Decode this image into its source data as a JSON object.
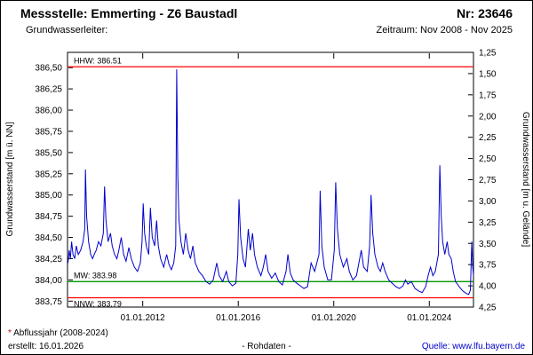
{
  "header": {
    "title": "Messstelle: Emmerting - Z6 Baustadl",
    "number": "Nr: 23646",
    "aquifer_label": "Grundwasserleiter:",
    "period": "Zeitraum: Nov 2008 - Nov 2025"
  },
  "footer": {
    "footnote_star": "*",
    "footnote_text": " Abflussjahr (2008-2024)",
    "created": "erstellt: 16.01.2026",
    "center": "- Rohdaten -",
    "source": "Quelle: www.lfu.bayern.de"
  },
  "chart_data": {
    "type": "line",
    "title": "",
    "ylabel_left": "Grundwasserstand [m ü. NN]",
    "ylabel_right": "Grundwasserstand [m u. Gelände]",
    "xlabel": "",
    "grid": false,
    "x_range": [
      2008.85,
      2025.85
    ],
    "ylim_left": [
      383.68,
      386.68
    ],
    "ylim_right": [
      4.25,
      1.25
    ],
    "ground_elevation_m": 387.93,
    "x_ticks": [
      {
        "value": 2012.0,
        "label": "01.01.2012"
      },
      {
        "value": 2016.0,
        "label": "01.01.2016"
      },
      {
        "value": 2020.0,
        "label": "01.01.2020"
      },
      {
        "value": 2024.0,
        "label": "01.01.2024"
      }
    ],
    "y_ticks_left": [
      {
        "value": 386.5,
        "label": "386,50"
      },
      {
        "value": 386.25,
        "label": "386,25"
      },
      {
        "value": 386.0,
        "label": "386,00"
      },
      {
        "value": 385.75,
        "label": "385,75"
      },
      {
        "value": 385.5,
        "label": "385,50"
      },
      {
        "value": 385.25,
        "label": "385,25"
      },
      {
        "value": 385.0,
        "label": "385,00"
      },
      {
        "value": 384.75,
        "label": "384,75"
      },
      {
        "value": 384.5,
        "label": "384,50"
      },
      {
        "value": 384.25,
        "label": "384,25"
      },
      {
        "value": 384.0,
        "label": "384,00"
      },
      {
        "value": 383.75,
        "label": "383,75"
      }
    ],
    "y_ticks_right": [
      {
        "value": 1.25,
        "label": "1,25"
      },
      {
        "value": 1.5,
        "label": "1,50"
      },
      {
        "value": 1.75,
        "label": "1,75"
      },
      {
        "value": 2.0,
        "label": "2,00"
      },
      {
        "value": 2.25,
        "label": "2,25"
      },
      {
        "value": 2.5,
        "label": "2,50"
      },
      {
        "value": 2.75,
        "label": "2,75"
      },
      {
        "value": 3.0,
        "label": "3,00"
      },
      {
        "value": 3.25,
        "label": "3,25"
      },
      {
        "value": 3.5,
        "label": "3,50"
      },
      {
        "value": 3.75,
        "label": "3,75"
      },
      {
        "value": 4.0,
        "label": "4,00"
      },
      {
        "value": 4.25,
        "label": "4,25"
      }
    ],
    "reference_lines": [
      {
        "name": "HHW",
        "value": 386.51,
        "label": "HHW: 386.51",
        "color": "#ff0000",
        "label_position": "above"
      },
      {
        "name": "MW",
        "value": 383.98,
        "label": "MW: 383.98",
        "color": "#009900",
        "label_position": "above"
      },
      {
        "name": "NNW",
        "value": 383.79,
        "label": "NNW: 383.79",
        "color": "#ff0000",
        "label_position": "below"
      }
    ],
    "series": [
      {
        "name": "Grundwasserstand Rohdaten",
        "color": "#0000cc",
        "points": [
          [
            2008.87,
            384.2
          ],
          [
            2008.92,
            384.35
          ],
          [
            2008.97,
            384.25
          ],
          [
            2009.02,
            384.45
          ],
          [
            2009.08,
            384.3
          ],
          [
            2009.15,
            384.25
          ],
          [
            2009.22,
            384.4
          ],
          [
            2009.3,
            384.3
          ],
          [
            2009.4,
            384.35
          ],
          [
            2009.5,
            384.45
          ],
          [
            2009.57,
            384.6
          ],
          [
            2009.6,
            385.3
          ],
          [
            2009.65,
            384.75
          ],
          [
            2009.73,
            384.45
          ],
          [
            2009.82,
            384.3
          ],
          [
            2009.9,
            384.25
          ],
          [
            2009.97,
            384.3
          ],
          [
            2010.05,
            384.35
          ],
          [
            2010.15,
            384.45
          ],
          [
            2010.25,
            384.4
          ],
          [
            2010.35,
            384.55
          ],
          [
            2010.4,
            385.1
          ],
          [
            2010.46,
            384.7
          ],
          [
            2010.55,
            384.45
          ],
          [
            2010.65,
            384.55
          ],
          [
            2010.72,
            384.4
          ],
          [
            2010.82,
            384.3
          ],
          [
            2010.92,
            384.25
          ],
          [
            2011.0,
            384.35
          ],
          [
            2011.1,
            384.5
          ],
          [
            2011.2,
            384.3
          ],
          [
            2011.3,
            384.22
          ],
          [
            2011.42,
            384.38
          ],
          [
            2011.52,
            384.25
          ],
          [
            2011.65,
            384.15
          ],
          [
            2011.78,
            384.1
          ],
          [
            2011.9,
            384.2
          ],
          [
            2011.97,
            384.45
          ],
          [
            2012.02,
            384.9
          ],
          [
            2012.08,
            384.55
          ],
          [
            2012.15,
            384.4
          ],
          [
            2012.25,
            384.3
          ],
          [
            2012.32,
            384.85
          ],
          [
            2012.4,
            384.5
          ],
          [
            2012.5,
            384.4
          ],
          [
            2012.58,
            384.7
          ],
          [
            2012.65,
            384.4
          ],
          [
            2012.75,
            384.25
          ],
          [
            2012.88,
            384.15
          ],
          [
            2013.0,
            384.3
          ],
          [
            2013.1,
            384.18
          ],
          [
            2013.2,
            384.12
          ],
          [
            2013.3,
            384.2
          ],
          [
            2013.38,
            384.4
          ],
          [
            2013.42,
            386.48
          ],
          [
            2013.47,
            385.2
          ],
          [
            2013.52,
            384.7
          ],
          [
            2013.6,
            384.45
          ],
          [
            2013.7,
            384.3
          ],
          [
            2013.8,
            384.55
          ],
          [
            2013.9,
            384.35
          ],
          [
            2014.0,
            384.25
          ],
          [
            2014.1,
            384.4
          ],
          [
            2014.2,
            384.2
          ],
          [
            2014.35,
            384.1
          ],
          [
            2014.5,
            384.05
          ],
          [
            2014.65,
            383.98
          ],
          [
            2014.8,
            383.95
          ],
          [
            2014.95,
            384.0
          ],
          [
            2015.1,
            384.2
          ],
          [
            2015.2,
            384.05
          ],
          [
            2015.35,
            383.98
          ],
          [
            2015.5,
            384.1
          ],
          [
            2015.6,
            383.98
          ],
          [
            2015.75,
            383.93
          ],
          [
            2015.9,
            383.96
          ],
          [
            2015.98,
            384.3
          ],
          [
            2016.03,
            384.95
          ],
          [
            2016.1,
            384.5
          ],
          [
            2016.2,
            384.25
          ],
          [
            2016.3,
            384.15
          ],
          [
            2016.42,
            384.6
          ],
          [
            2016.5,
            384.35
          ],
          [
            2016.6,
            384.55
          ],
          [
            2016.68,
            384.3
          ],
          [
            2016.8,
            384.15
          ],
          [
            2016.95,
            384.05
          ],
          [
            2017.05,
            384.15
          ],
          [
            2017.15,
            384.3
          ],
          [
            2017.25,
            384.1
          ],
          [
            2017.4,
            384.02
          ],
          [
            2017.55,
            384.08
          ],
          [
            2017.7,
            383.98
          ],
          [
            2017.85,
            383.94
          ],
          [
            2018.0,
            384.1
          ],
          [
            2018.08,
            384.3
          ],
          [
            2018.18,
            384.08
          ],
          [
            2018.3,
            384.0
          ],
          [
            2018.45,
            383.96
          ],
          [
            2018.6,
            383.93
          ],
          [
            2018.75,
            383.9
          ],
          [
            2018.9,
            383.92
          ],
          [
            2019.05,
            384.2
          ],
          [
            2019.2,
            384.1
          ],
          [
            2019.38,
            384.3
          ],
          [
            2019.43,
            385.05
          ],
          [
            2019.5,
            384.4
          ],
          [
            2019.6,
            384.15
          ],
          [
            2019.75,
            384.0
          ],
          [
            2019.9,
            384.0
          ],
          [
            2020.02,
            384.35
          ],
          [
            2020.08,
            385.15
          ],
          [
            2020.15,
            384.6
          ],
          [
            2020.25,
            384.3
          ],
          [
            2020.4,
            384.15
          ],
          [
            2020.55,
            384.25
          ],
          [
            2020.65,
            384.1
          ],
          [
            2020.8,
            384.0
          ],
          [
            2020.95,
            384.05
          ],
          [
            2021.05,
            384.2
          ],
          [
            2021.15,
            384.35
          ],
          [
            2021.25,
            384.15
          ],
          [
            2021.4,
            384.1
          ],
          [
            2021.5,
            384.4
          ],
          [
            2021.56,
            385.0
          ],
          [
            2021.63,
            384.55
          ],
          [
            2021.72,
            384.3
          ],
          [
            2021.85,
            384.15
          ],
          [
            2021.95,
            384.1
          ],
          [
            2022.05,
            384.2
          ],
          [
            2022.15,
            384.1
          ],
          [
            2022.3,
            384.0
          ],
          [
            2022.45,
            383.96
          ],
          [
            2022.6,
            383.92
          ],
          [
            2022.75,
            383.9
          ],
          [
            2022.9,
            383.93
          ],
          [
            2023.0,
            384.0
          ],
          [
            2023.1,
            383.95
          ],
          [
            2023.25,
            383.98
          ],
          [
            2023.4,
            383.9
          ],
          [
            2023.55,
            383.87
          ],
          [
            2023.7,
            383.85
          ],
          [
            2023.85,
            383.92
          ],
          [
            2023.95,
            384.05
          ],
          [
            2024.05,
            384.15
          ],
          [
            2024.15,
            384.05
          ],
          [
            2024.25,
            384.1
          ],
          [
            2024.38,
            384.3
          ],
          [
            2024.44,
            385.35
          ],
          [
            2024.5,
            384.75
          ],
          [
            2024.56,
            384.45
          ],
          [
            2024.65,
            384.3
          ],
          [
            2024.75,
            384.45
          ],
          [
            2024.82,
            384.3
          ],
          [
            2024.92,
            384.25
          ],
          [
            2025.0,
            384.1
          ],
          [
            2025.1,
            383.98
          ],
          [
            2025.25,
            383.92
          ],
          [
            2025.4,
            383.87
          ],
          [
            2025.55,
            383.84
          ],
          [
            2025.65,
            383.83
          ],
          [
            2025.72,
            383.88
          ],
          [
            2025.78,
            384.45
          ],
          [
            2025.82,
            384.15
          ],
          [
            2025.85,
            384.05
          ]
        ]
      }
    ]
  }
}
